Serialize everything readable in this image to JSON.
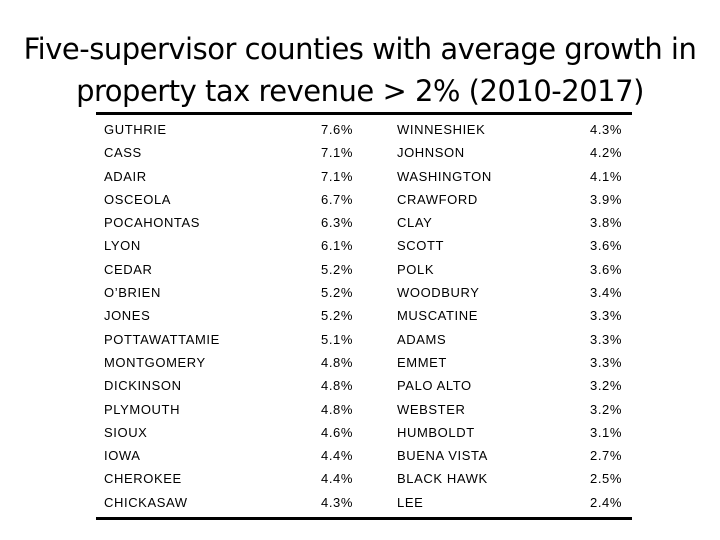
{
  "title": "Five-supervisor counties with average growth in property tax revenue > 2% (2010-2017)",
  "rows": [
    [
      "GUTHRIE",
      "7.6%",
      "WINNESHIEK",
      "4.3%"
    ],
    [
      "CASS",
      "7.1%",
      "JOHNSON",
      "4.2%"
    ],
    [
      "ADAIR",
      "7.1%",
      "WASHINGTON",
      "4.1%"
    ],
    [
      "OSCEOLA",
      "6.7%",
      "CRAWFORD",
      "3.9%"
    ],
    [
      "POCAHONTAS",
      "6.3%",
      "CLAY",
      "3.8%"
    ],
    [
      "LYON",
      "6.1%",
      "SCOTT",
      "3.6%"
    ],
    [
      "CEDAR",
      "5.2%",
      "POLK",
      "3.6%"
    ],
    [
      "O’BRIEN",
      "5.2%",
      "WOODBURY",
      "3.4%"
    ],
    [
      "JONES",
      "5.2%",
      "MUSCATINE",
      "3.3%"
    ],
    [
      "POTTAWATTAMIE",
      "5.1%",
      "ADAMS",
      "3.3%"
    ],
    [
      "MONTGOMERY",
      "4.8%",
      "EMMET",
      "3.3%"
    ],
    [
      "DICKINSON",
      "4.8%",
      "PALO ALTO",
      "3.2%"
    ],
    [
      "PLYMOUTH",
      "4.8%",
      "WEBSTER",
      "3.2%"
    ],
    [
      "SIOUX",
      "4.6%",
      "HUMBOLDT",
      "3.1%"
    ],
    [
      "IOWA",
      "4.4%",
      "BUENA VISTA",
      "2.7%"
    ],
    [
      "CHEROKEE",
      "4.4%",
      "BLACK HAWK",
      "2.5%"
    ],
    [
      "CHICKASAW",
      "4.3%",
      "LEE",
      "2.4%"
    ]
  ]
}
